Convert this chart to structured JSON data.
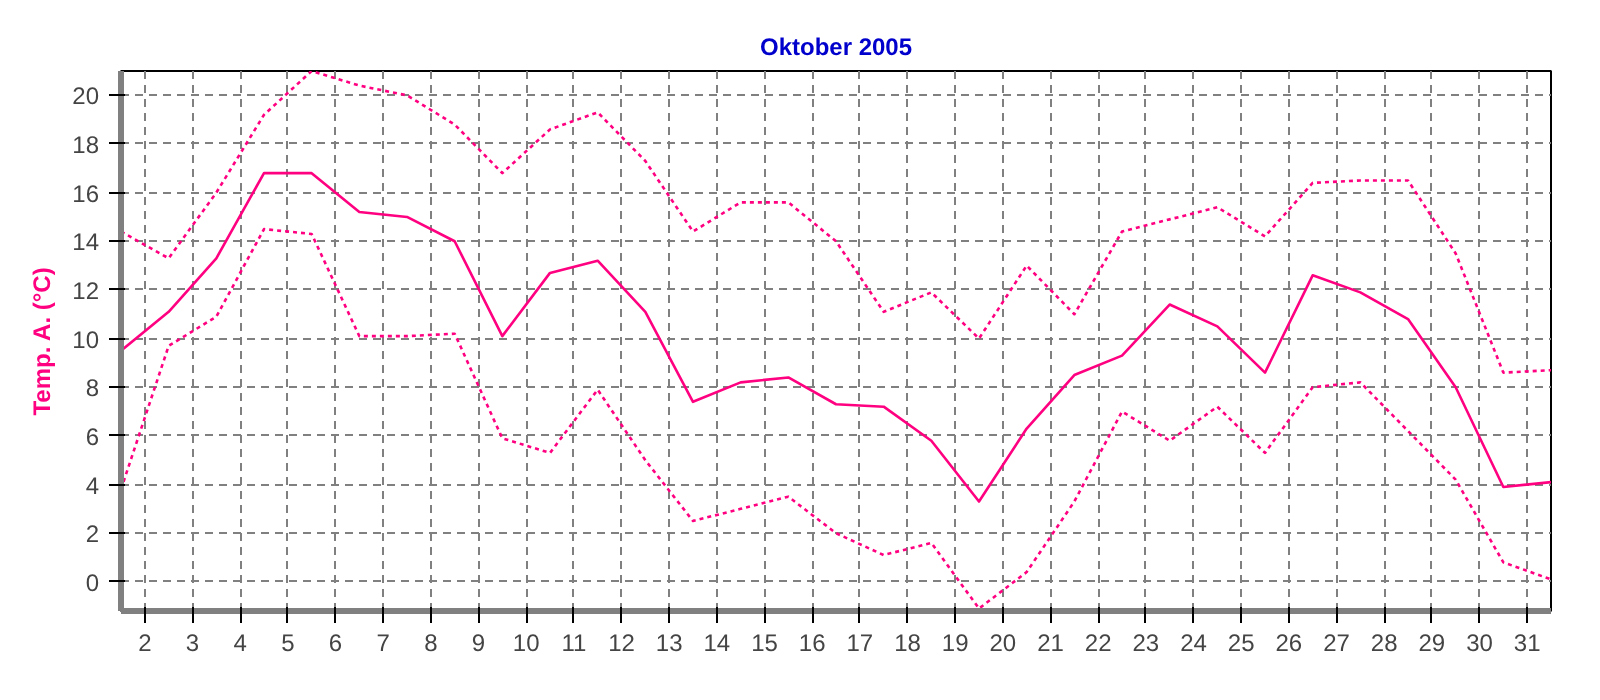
{
  "chart_data": {
    "type": "line",
    "title": "Oktober 2005",
    "ylabel": "Temp. A. (°C)",
    "x": [
      1.5,
      2.5,
      3.5,
      4.5,
      5.5,
      6.5,
      7.5,
      8.5,
      9.5,
      10.5,
      11.5,
      12.5,
      13.5,
      14.5,
      15.5,
      16.5,
      17.5,
      18.5,
      19.5,
      20.5,
      21.5,
      22.5,
      23.5,
      24.5,
      25.5,
      26.5,
      27.5,
      28.5,
      29.5,
      30.5,
      31.5
    ],
    "xlim": [
      1.5,
      31.5
    ],
    "xticks": [
      2,
      3,
      4,
      5,
      6,
      7,
      8,
      9,
      10,
      11,
      12,
      13,
      14,
      15,
      16,
      17,
      18,
      19,
      20,
      21,
      22,
      23,
      24,
      25,
      26,
      27,
      28,
      29,
      30,
      31
    ],
    "ylim": [
      -1.2,
      21
    ],
    "yticks": [
      0,
      2,
      4,
      6,
      8,
      10,
      12,
      14,
      16,
      18,
      20
    ],
    "grid": true,
    "marker": "none",
    "series": [
      {
        "color": "#ff0080",
        "line_style": "dotted",
        "values": [
          14.4,
          13.3,
          16.0,
          19.2,
          21.0,
          20.4,
          20.0,
          18.8,
          16.8,
          18.6,
          19.3,
          17.3,
          14.4,
          15.6,
          15.6,
          14.0,
          11.1,
          11.9,
          10.0,
          13.0,
          11.0,
          14.4,
          14.9,
          15.4,
          14.2,
          16.4,
          16.5,
          16.5,
          13.5,
          8.6,
          8.7
        ]
      },
      {
        "color": "#ff0080",
        "line_style": "solid",
        "values": [
          9.5,
          11.1,
          13.3,
          16.8,
          16.8,
          15.2,
          15.0,
          14.0,
          10.1,
          12.7,
          13.2,
          11.1,
          7.4,
          8.2,
          8.4,
          7.3,
          7.2,
          5.8,
          3.3,
          6.3,
          8.5,
          9.3,
          11.4,
          10.5,
          8.6,
          12.6,
          11.9,
          10.8,
          8.0,
          3.9,
          4.1
        ]
      },
      {
        "color": "#ff0080",
        "line_style": "dotted",
        "values": [
          3.8,
          9.7,
          10.9,
          14.5,
          14.3,
          10.1,
          10.1,
          10.2,
          5.9,
          5.3,
          7.9,
          5.0,
          2.5,
          3.0,
          3.5,
          2.0,
          1.1,
          1.6,
          -1.1,
          0.4,
          3.3,
          7.0,
          5.8,
          7.2,
          5.3,
          8.0,
          8.2,
          6.2,
          4.2,
          0.8,
          0.1
        ]
      }
    ]
  }
}
